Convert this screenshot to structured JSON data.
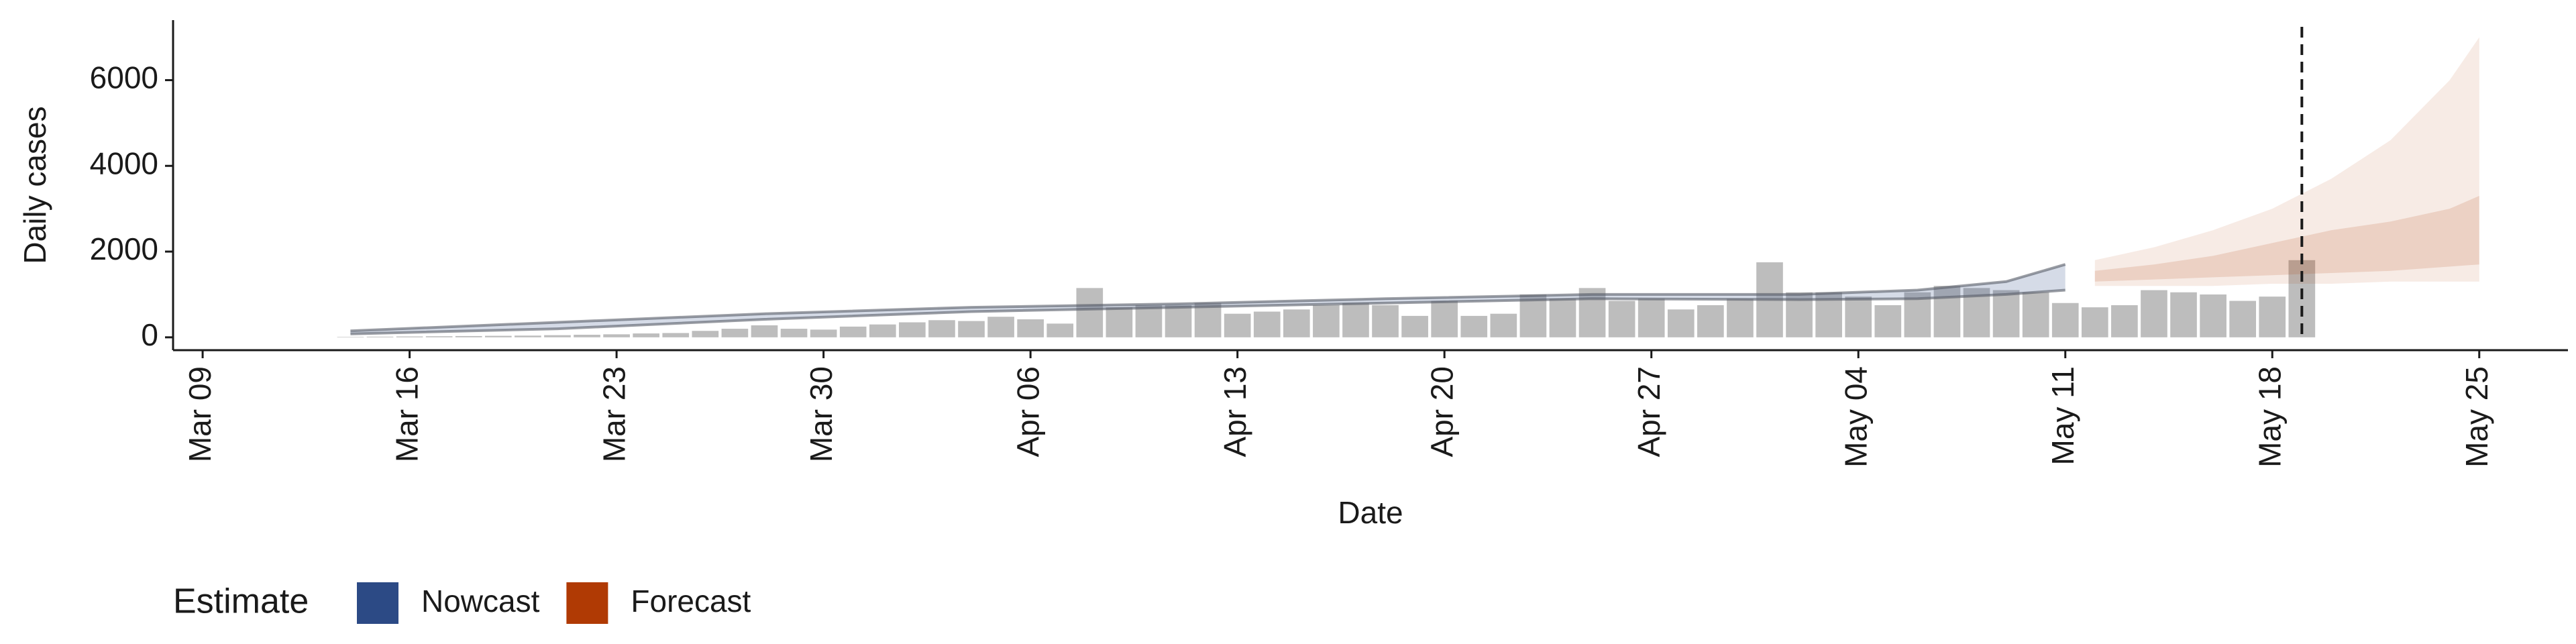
{
  "chart_data": {
    "type": "bar",
    "x_label": "Date",
    "y_label": "Daily cases",
    "xlim": [
      "Mar 08",
      "May 28"
    ],
    "ylim": [
      -300,
      7400
    ],
    "xticks": [
      "Mar 09",
      "Mar 16",
      "Mar 23",
      "Mar 30",
      "Apr 06",
      "Apr 13",
      "Apr 20",
      "Apr 27",
      "May 04",
      "May 11",
      "May 18",
      "May 25"
    ],
    "yticks": [
      0,
      2000,
      4000,
      6000
    ],
    "vline": "May 19",
    "bars": {
      "color": "#bdbdbd",
      "x": [
        "Mar 14",
        "Mar 15",
        "Mar 16",
        "Mar 17",
        "Mar 18",
        "Mar 19",
        "Mar 20",
        "Mar 21",
        "Mar 22",
        "Mar 23",
        "Mar 24",
        "Mar 25",
        "Mar 26",
        "Mar 27",
        "Mar 28",
        "Mar 29",
        "Mar 30",
        "Mar 31",
        "Apr 01",
        "Apr 02",
        "Apr 03",
        "Apr 04",
        "Apr 05",
        "Apr 06",
        "Apr 07",
        "Apr 08",
        "Apr 09",
        "Apr 10",
        "Apr 11",
        "Apr 12",
        "Apr 13",
        "Apr 14",
        "Apr 15",
        "Apr 16",
        "Apr 17",
        "Apr 18",
        "Apr 19",
        "Apr 20",
        "Apr 21",
        "Apr 22",
        "Apr 23",
        "Apr 24",
        "Apr 25",
        "Apr 26",
        "Apr 27",
        "Apr 28",
        "Apr 29",
        "Apr 30",
        "May 01",
        "May 02",
        "May 03",
        "May 04",
        "May 05",
        "May 06",
        "May 07",
        "May 08",
        "May 09",
        "May 10",
        "May 11",
        "May 12",
        "May 13",
        "May 14",
        "May 15",
        "May 16",
        "May 17",
        "May 18",
        "May 19"
      ],
      "values": [
        10,
        15,
        20,
        25,
        30,
        35,
        40,
        50,
        60,
        70,
        90,
        100,
        150,
        200,
        280,
        200,
        180,
        250,
        300,
        350,
        400,
        380,
        480,
        420,
        320,
        1150,
        700,
        750,
        750,
        800,
        550,
        600,
        650,
        750,
        800,
        750,
        500,
        850,
        500,
        550,
        1000,
        900,
        1150,
        850,
        900,
        650,
        750,
        900,
        1750,
        1050,
        1050,
        950,
        750,
        1050,
        1200,
        1150,
        1100,
        1050,
        800,
        700,
        750,
        1100,
        1050,
        1000,
        850,
        950,
        1800
      ]
    },
    "legend_title": "Estimate",
    "series": [
      {
        "name": "Nowcast",
        "color": "#2c4a85",
        "x": [
          "Mar 14",
          "Mar 21",
          "Mar 28",
          "Apr 04",
          "Apr 11",
          "Apr 18",
          "Apr 25",
          "May 02",
          "May 06",
          "May 09",
          "May 11"
        ],
        "upper": [
          150,
          350,
          550,
          700,
          780,
          900,
          1000,
          1000,
          1100,
          1300,
          1700
        ],
        "lower": [
          80,
          200,
          420,
          600,
          700,
          800,
          900,
          880,
          900,
          1000,
          1100
        ]
      },
      {
        "name": "Forecast",
        "color": "#b03a04",
        "x": [
          "May 12",
          "May 14",
          "May 16",
          "May 18",
          "May 20",
          "May 22",
          "May 24",
          "May 25"
        ],
        "upper": [
          1800,
          2100,
          2500,
          3000,
          3700,
          4600,
          6000,
          7000
        ],
        "lower": [
          1200,
          1200,
          1200,
          1250,
          1250,
          1300,
          1300,
          1300
        ],
        "upper50": [
          1550,
          1700,
          1900,
          2200,
          2500,
          2700,
          3000,
          3300
        ],
        "lower50": [
          1300,
          1350,
          1400,
          1450,
          1500,
          1550,
          1650,
          1700
        ]
      }
    ]
  }
}
